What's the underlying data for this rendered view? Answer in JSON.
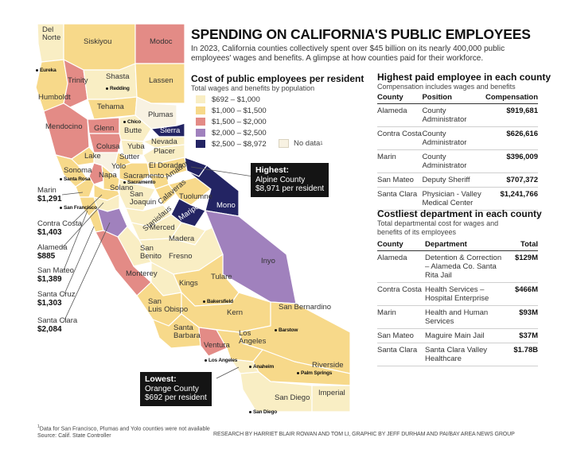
{
  "header": {
    "title": "SPENDING ON CALIFORNIA'S PUBLIC EMPLOYEES",
    "intro": "In 2023, California counties collectively spent over $45 billion on its nearly 400,000 public employees' wages and benefits. A glimpse at how counties paid for their workforce."
  },
  "legend": {
    "title": "Cost of public employees per resident",
    "subtitle": "Total wages and benefits by population",
    "bins": [
      {
        "label": "$692 – $1,000",
        "color": "#f9eec4"
      },
      {
        "label": "$1,000 – $1,500",
        "color": "#f7d98a"
      },
      {
        "label": "$1,500 – $2,000",
        "color": "#e38b86"
      },
      {
        "label": "$2,000 – $2,500",
        "color": "#a081bd"
      },
      {
        "label": "$2,500 – $8,972",
        "color": "#232463"
      }
    ],
    "nodata_label": "No data",
    "nodata_mark": "1"
  },
  "highest_paid": {
    "title": "Highest paid employee in each county",
    "subtitle": "Compensation includes wages and benefits",
    "columns": [
      "County",
      "Position",
      "Compensation"
    ],
    "rows": [
      {
        "county": "Alameda",
        "position": "County Administrator",
        "value": "$919,681"
      },
      {
        "county": "Contra Costa",
        "position": "County Administrator",
        "value": "$626,616"
      },
      {
        "county": "Marin",
        "position": "County Administrator",
        "value": "$396,009"
      },
      {
        "county": "San Mateo",
        "position": "Deputy Sheriff",
        "value": "$707,372"
      },
      {
        "county": "Santa Clara",
        "position": "Physician - Valley Medical Center",
        "value": "$1,241,766"
      }
    ]
  },
  "costliest_dept": {
    "title": "Costliest department in each county",
    "subtitle": "Total departmental cost for wages and benefits of its employees",
    "columns": [
      "County",
      "Department",
      "Total"
    ],
    "rows": [
      {
        "county": "Alameda",
        "department": "Detention & Correction – Alameda Co. Santa Rita Jail",
        "value": "$129M"
      },
      {
        "county": "Contra Costa",
        "department": "Health Services – Hospital Enterprise",
        "value": "$466M"
      },
      {
        "county": "Marin",
        "department": "Health and Human Services",
        "value": "$93M"
      },
      {
        "county": "San Mateo",
        "department": "Maguire Main Jail",
        "value": "$37M"
      },
      {
        "county": "Santa Clara",
        "department": "Santa Clara Valley Healthcare",
        "value": "$1.78B"
      }
    ]
  },
  "callouts": {
    "highest": {
      "heading": "Highest:",
      "county": "Alpine County",
      "value": "$8,971 per resident"
    },
    "lowest": {
      "heading": "Lowest:",
      "county": "Orange County",
      "value": "$692 per resident"
    }
  },
  "bay_labels": [
    {
      "county": "Marin",
      "value": "$1,291"
    },
    {
      "county": "Contra Costa",
      "value": "$1,403"
    },
    {
      "county": "Alameda",
      "value": "$885"
    },
    {
      "county": "San Mateo",
      "value": "$1,389"
    },
    {
      "county": "Santa Cruz",
      "value": "$1,303"
    },
    {
      "county": "Santa Clara",
      "value": "$2,084"
    }
  ],
  "counties": {
    "del_norte": "Del\nNorte",
    "siskiyou": "Siskiyou",
    "modoc": "Modoc",
    "humboldt": "Humboldt",
    "trinity": "Trinity",
    "shasta": "Shasta",
    "lassen": "Lassen",
    "tehama": "Tehama",
    "plumas": "Plumas",
    "mendocino": "Mendocino",
    "glenn": "Glenn",
    "butte": "Butte",
    "sierra": "Sierra",
    "nevada": "Nevada",
    "colusa": "Colusa",
    "yuba": "Yuba",
    "placer": "Placer",
    "lake": "Lake",
    "sutter": "Sutter",
    "el_dorado": "El Dorado",
    "sonoma": "Sonoma",
    "yolo": "Yolo",
    "napa": "Napa",
    "sacramento": "Sacramento",
    "amador": "Amador",
    "solano": "Solano",
    "san_joaquin": "San\nJoaquin",
    "calaveras": "Calaveras",
    "tuolumne": "Tuolumne",
    "mono": "Mono",
    "stanislaus": "Stanislaus",
    "mariposa": "Mariposa",
    "merced": "Merced",
    "madera": "Madera",
    "san_benito": "San\nBenito",
    "fresno": "Fresno",
    "inyo": "Inyo",
    "monterey": "Monterey",
    "kings": "Kings",
    "tulare": "Tulare",
    "san_luis_obispo": "San\nLuis Obispo",
    "kern": "Kern",
    "san_bernardino": "San Bernardino",
    "santa_barbara": "Santa\nBarbara",
    "ventura": "Ventura",
    "los_angeles": "Los\nAngeles",
    "riverside": "Riverside",
    "san_diego": "San Diego",
    "imperial": "Imperial"
  },
  "cities": {
    "eureka": "Eureka",
    "redding": "Redding",
    "chico": "Chico",
    "santa_rosa": "Santa Rosa",
    "sacramento": "Sacramento",
    "san_francisco": "San Francisco",
    "bakersfield": "Bakersfield",
    "barstow": "Barstow",
    "los_angeles": "Los Angeles",
    "anaheim": "Anaheim",
    "palm_springs": "Palm Springs",
    "san_diego": "San Diego"
  },
  "footer": {
    "note": "Data for San Francisco, Plumas and Yolo counties were not available",
    "note_mark": "1",
    "source": "Source: Calif. State Controller",
    "credit": "RESEARCH BY HARRIET BLAIR ROWAN AND TOM LI, GRAPHIC BY JEFF DURHAM AND PAI/BAY AREA NEWS GROUP"
  }
}
